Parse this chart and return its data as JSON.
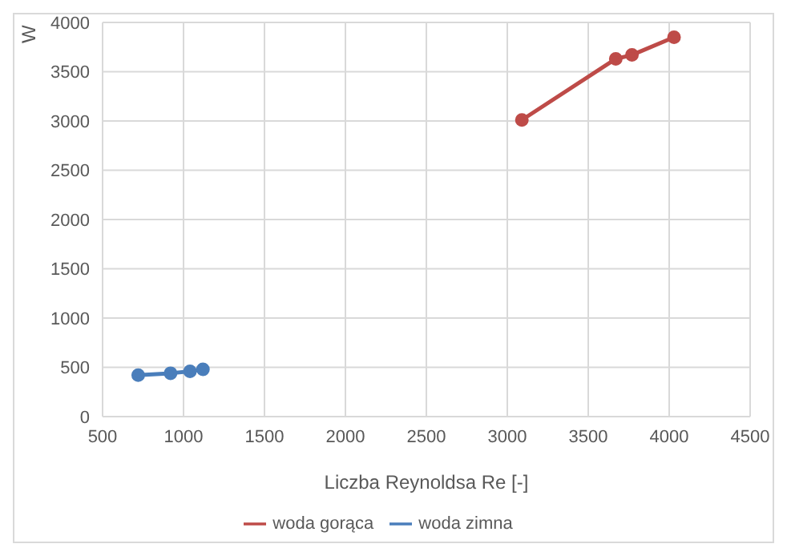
{
  "chart_data": {
    "type": "line",
    "xlabel": "Liczba Reynoldsa Re [-]",
    "ylabel": "W",
    "xlim": [
      500,
      4500
    ],
    "xticks": [
      500,
      1000,
      1500,
      2000,
      2500,
      3000,
      3500,
      4000,
      4500
    ],
    "ylim": [
      0,
      4000
    ],
    "yticks": [
      0,
      500,
      1000,
      1500,
      2000,
      2500,
      3000,
      3500,
      4000
    ],
    "grid": true,
    "legend": "bottom",
    "marker": "circle",
    "series": [
      {
        "name": "woda zimna",
        "color": "#4a7ebb",
        "x": [
          720,
          920,
          1040,
          1120
        ],
        "values": [
          420,
          440,
          460,
          480
        ]
      },
      {
        "name": "woda gorąca",
        "color": "#be4b48",
        "x": [
          3090,
          3670,
          3770,
          4030
        ],
        "values": [
          3010,
          3630,
          3670,
          3850
        ]
      }
    ]
  }
}
